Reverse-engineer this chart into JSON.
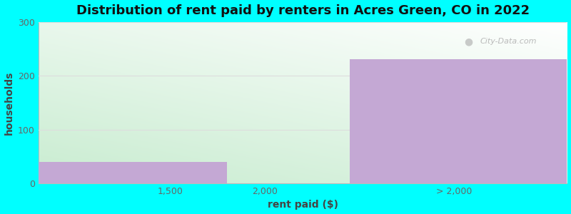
{
  "title": "Distribution of rent paid by renters in Acres Green, CO in 2022",
  "xlabel": "rent paid ($)",
  "ylabel": "households",
  "background_color": "#00ffff",
  "bar_color": "#c4a8d4",
  "xtick_labels": [
    "1,500",
    "2,000",
    "> 2,000"
  ],
  "values": [
    40,
    0,
    230
  ],
  "ylim": [
    0,
    300
  ],
  "yticks": [
    0,
    100,
    200,
    300
  ],
  "title_fontsize": 13,
  "label_fontsize": 10,
  "tick_fontsize": 9,
  "watermark": "City-Data.com",
  "grid_color": "#dddddd",
  "gradient_top_color": "#f0faf0",
  "gradient_bottom_color": "#c8ecd0"
}
